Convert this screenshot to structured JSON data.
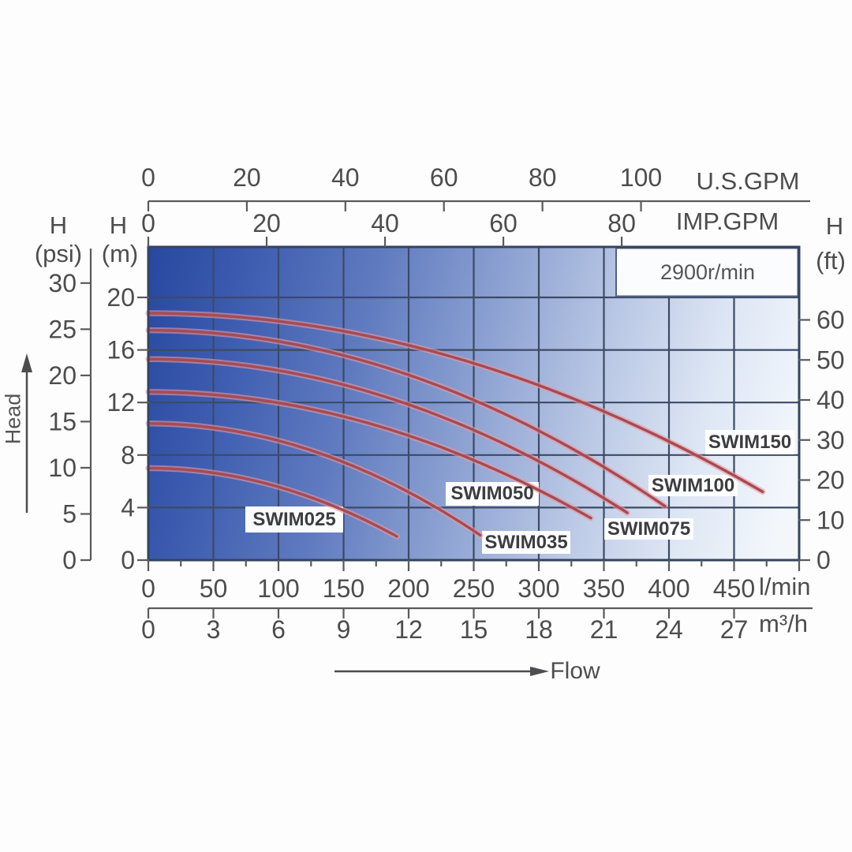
{
  "chart_data": {
    "type": "line",
    "rpm_label": "2900r/min",
    "flow_label": "Flow",
    "head_label": "Head",
    "axes": {
      "us_gpm": {
        "unit": "U.S.GPM",
        "ticks": [
          0,
          20,
          40,
          60,
          80,
          100
        ],
        "lmin_per_unit": 3.785
      },
      "imp_gpm": {
        "unit": "IMP.GPM",
        "ticks": [
          0,
          20,
          40,
          60,
          80
        ],
        "lmin_per_unit": 4.546
      },
      "lmin": {
        "unit": "l/min",
        "ticks": [
          0,
          50,
          100,
          150,
          200,
          250,
          300,
          350,
          400,
          450
        ],
        "minor_step": 25,
        "max": 500
      },
      "m3h": {
        "unit": "m³/h",
        "ticks": [
          0,
          3,
          6,
          9,
          12,
          15,
          18,
          21,
          24,
          27
        ],
        "lmin_per_unit": 16.6667
      },
      "head_m": {
        "label": "H",
        "unit_label": "(m)",
        "ticks": [
          0,
          4,
          8,
          12,
          16,
          20
        ],
        "max": 23.84
      },
      "head_psi": {
        "label": "H",
        "unit_label": "(psi)",
        "ticks": [
          0,
          5,
          10,
          15,
          20,
          25,
          30
        ],
        "m_per_unit": 0.7031
      },
      "head_ft": {
        "label": "H",
        "unit_label": "(ft)",
        "ticks": [
          0,
          10,
          20,
          30,
          40,
          50,
          60
        ],
        "m_per_unit": 0.3048
      }
    },
    "series": [
      {
        "name": "SWIM025",
        "shutoff_head_m": 7.0,
        "max_flow_lmin": 191,
        "end_head_m": 1.8,
        "points_lmin_m": [
          [
            0,
            7.0
          ],
          [
            50,
            6.6
          ],
          [
            100,
            5.6
          ],
          [
            150,
            3.8
          ],
          [
            191,
            1.8
          ]
        ],
        "label_box": [
          311,
          642,
          124,
          33
        ]
      },
      {
        "name": "SWIM035",
        "shutoff_head_m": 10.4,
        "max_flow_lmin": 255,
        "end_head_m": 1.9,
        "points_lmin_m": [
          [
            0,
            10.4
          ],
          [
            50,
            10.1
          ],
          [
            100,
            9.1
          ],
          [
            150,
            7.5
          ],
          [
            200,
            5.2
          ],
          [
            255,
            1.9
          ]
        ],
        "label_box": [
          611,
          673,
          112,
          29
        ]
      },
      {
        "name": "SWIM050",
        "shutoff_head_m": 12.8,
        "max_flow_lmin": 340,
        "end_head_m": 3.2,
        "points_lmin_m": [
          [
            0,
            12.8
          ],
          [
            100,
            12.0
          ],
          [
            200,
            9.5
          ],
          [
            300,
            5.3
          ],
          [
            340,
            3.2
          ]
        ],
        "label_box": [
          565,
          611,
          118,
          30
        ]
      },
      {
        "name": "SWIM075",
        "shutoff_head_m": 15.3,
        "max_flow_lmin": 368,
        "end_head_m": 3.6,
        "points_lmin_m": [
          [
            0,
            15.3
          ],
          [
            100,
            14.4
          ],
          [
            200,
            11.8
          ],
          [
            300,
            7.5
          ],
          [
            368,
            3.6
          ]
        ],
        "label_box": [
          766,
          657,
          113,
          27
        ]
      },
      {
        "name": "SWIM100",
        "shutoff_head_m": 17.5,
        "max_flow_lmin": 397,
        "end_head_m": 4.1,
        "points_lmin_m": [
          [
            0,
            17.5
          ],
          [
            100,
            16.7
          ],
          [
            200,
            14.1
          ],
          [
            300,
            9.8
          ],
          [
            397,
            4.1
          ]
        ],
        "label_box": [
          822,
          602,
          113,
          27
        ]
      },
      {
        "name": "SWIM150",
        "shutoff_head_m": 18.8,
        "max_flow_lmin": 472,
        "end_head_m": 5.2,
        "points_lmin_m": [
          [
            0,
            18.8
          ],
          [
            100,
            18.2
          ],
          [
            200,
            16.4
          ],
          [
            300,
            13.3
          ],
          [
            400,
            9.0
          ],
          [
            472,
            5.2
          ]
        ],
        "label_box": [
          894,
          545,
          113,
          31
        ]
      }
    ],
    "colors": {
      "curve_core": "#a84a52",
      "curve_halo": "#e79aa0",
      "grid": "#3c4a66",
      "plot_border": "#36435f",
      "axis": "#5a5a5c",
      "text": "#4d4d4f",
      "bg_dark": "#27489f",
      "bg_light": "#f3f7fc"
    }
  }
}
